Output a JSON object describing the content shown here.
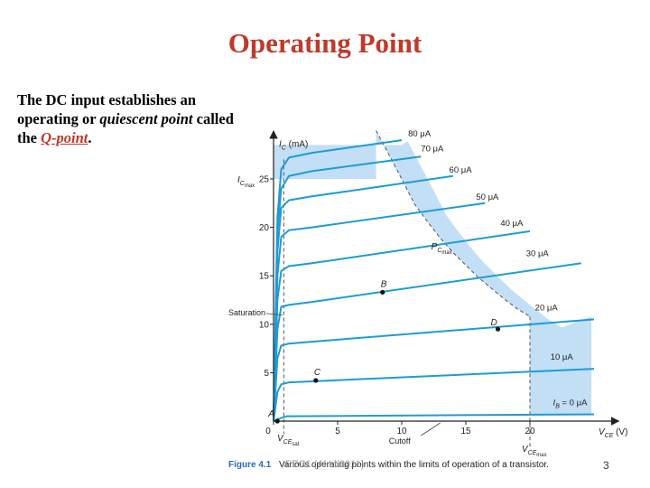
{
  "slide": {
    "title": "Operating Point",
    "intro_1": "The DC input establishes an operating or ",
    "intro_quiescent": "quiescent point",
    "intro_2": " called the ",
    "intro_qpoint": "Q-point",
    "intro_3": "."
  },
  "caption": {
    "figure_label": "Figure 4.1",
    "text": "Various operating points within the limits of operation of a transistor."
  },
  "footer": {
    "text": "EEC1 (Al Li 2011)",
    "page_number": "3"
  },
  "colors": {
    "title": "#c0392b",
    "curve": "#1e9bd7",
    "region": "#c2dff5",
    "caption_label": "#2a6db5"
  },
  "chart_data": {
    "type": "line",
    "xlabel": "V",
    "xlabel_sub": "CE",
    "xunit": "(V)",
    "ylabel": "I",
    "ylabel_sub": "C",
    "yunit": "(mA)",
    "xlim": [
      0,
      25
    ],
    "ylim": [
      0,
      30
    ],
    "x_ticks": [
      0,
      5,
      10,
      15,
      20
    ],
    "y_ticks": [
      5,
      10,
      15,
      20,
      25
    ],
    "series": [
      {
        "name": "I_B = 0 μA",
        "label_main": "I",
        "label_sub": "B",
        "label_rest": " = 0 μA",
        "values": [
          [
            0,
            0
          ],
          [
            0.3,
            0.2
          ],
          [
            1,
            0.5
          ],
          [
            25,
            0.7
          ]
        ]
      },
      {
        "name": "10 μA",
        "label": "10 μA",
        "values": [
          [
            0,
            0
          ],
          [
            0.3,
            3
          ],
          [
            0.6,
            3.8
          ],
          [
            1.2,
            4.0
          ],
          [
            3,
            4.1
          ],
          [
            25,
            5.4
          ]
        ]
      },
      {
        "name": "20 μA",
        "label": "20 μA",
        "values": [
          [
            0,
            0
          ],
          [
            0.3,
            6.5
          ],
          [
            0.6,
            7.8
          ],
          [
            1.2,
            8.0
          ],
          [
            3,
            8.2
          ],
          [
            25,
            10.5
          ]
        ]
      },
      {
        "name": "30 μA",
        "label": "30 μA",
        "values": [
          [
            0,
            0
          ],
          [
            0.3,
            9.5
          ],
          [
            0.6,
            11.8
          ],
          [
            1.2,
            12.0
          ],
          [
            3,
            12.3
          ],
          [
            24,
            16.3
          ]
        ]
      },
      {
        "name": "40 μA",
        "label": "40 μA",
        "values": [
          [
            0,
            0
          ],
          [
            0.3,
            12.5
          ],
          [
            0.6,
            15.5
          ],
          [
            1.2,
            16.0
          ],
          [
            3,
            16.3
          ],
          [
            20,
            19.6
          ]
        ]
      },
      {
        "name": "50 μA",
        "label": "50 μA",
        "values": [
          [
            0,
            0
          ],
          [
            0.3,
            15
          ],
          [
            0.6,
            19
          ],
          [
            1.2,
            19.7
          ],
          [
            3,
            20
          ],
          [
            16.5,
            22.5
          ]
        ]
      },
      {
        "name": "60 μA",
        "label": "60 μA",
        "values": [
          [
            0,
            0
          ],
          [
            0.3,
            17.5
          ],
          [
            0.6,
            22
          ],
          [
            1.2,
            22.8
          ],
          [
            3,
            23.2
          ],
          [
            14,
            25.3
          ]
        ]
      },
      {
        "name": "70 μA",
        "label": "70 μA",
        "values": [
          [
            0,
            0
          ],
          [
            0.3,
            19.5
          ],
          [
            0.6,
            24
          ],
          [
            1.2,
            25.3
          ],
          [
            3,
            25.8
          ],
          [
            11.5,
            27.3
          ]
        ]
      },
      {
        "name": "80 μA",
        "label": "80 μA",
        "values": [
          [
            0,
            0
          ],
          [
            0.3,
            21
          ],
          [
            0.6,
            26
          ],
          [
            1.2,
            27.2
          ],
          [
            3,
            27.7
          ],
          [
            10,
            29.0
          ]
        ]
      }
    ],
    "points": [
      {
        "name": "A",
        "x": 0.3,
        "y": 0
      },
      {
        "name": "B",
        "x": 8.5,
        "y": 13.3
      },
      {
        "name": "C",
        "x": 3.3,
        "y": 4.2
      },
      {
        "name": "D",
        "x": 17.5,
        "y": 9.5
      }
    ],
    "icmax": 25,
    "vcemax": 20,
    "vce_sat": 0.8,
    "pcmax_curve": [
      [
        8,
        30
      ],
      [
        9,
        27.5
      ],
      [
        10,
        25
      ],
      [
        11,
        22.4
      ],
      [
        12,
        20.6
      ],
      [
        13,
        18.9
      ],
      [
        14,
        17.4
      ],
      [
        15,
        16.1
      ],
      [
        16,
        14.8
      ],
      [
        17,
        13.7
      ],
      [
        18,
        12.6
      ],
      [
        19,
        11.6
      ],
      [
        20,
        10.8
      ]
    ],
    "annotations": {
      "icmax_main": "I",
      "icmax_sub": "C",
      "icmax_subsub": "max",
      "pcmax_main": "P",
      "pcmax_sub": "C",
      "pcmax_subsub": "max",
      "vcemax_main": "V",
      "vcemax_sub": "CE",
      "vcemax_subsub": "max",
      "vcesat_main": "V",
      "vcesat_sub": "CE",
      "vcesat_subsub": "sat",
      "saturation": "Saturation",
      "cutoff": "Cutoff"
    }
  }
}
